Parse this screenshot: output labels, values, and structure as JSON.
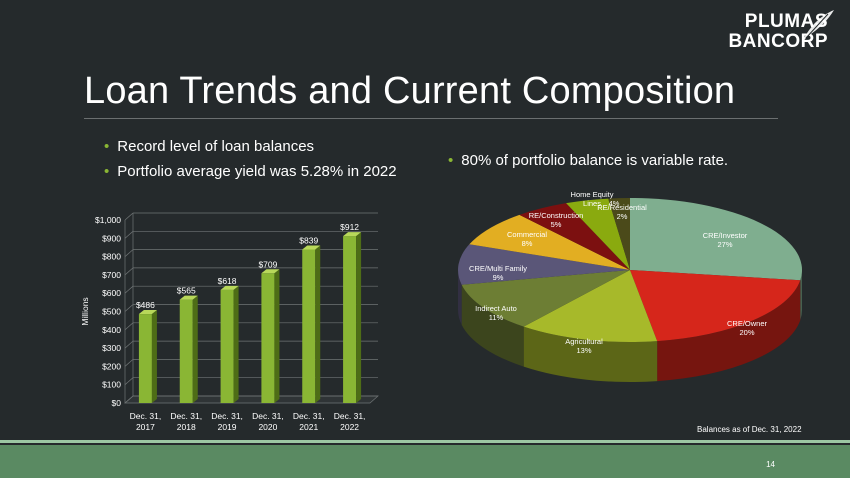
{
  "header": {
    "logo_line1": "PLUMAS",
    "logo_line2": "BANCORP",
    "title": "Loan Trends and Current Composition"
  },
  "bullets_left": [
    "Record level of loan balances",
    "Portfolio average yield was 5.28% in 2022"
  ],
  "bullet_right": "80% of portfolio balance is variable rate.",
  "footer": {
    "as_of": "Balances as of  Dec. 31, 2022",
    "page_number": "14"
  },
  "colors": {
    "background": "#252a2c",
    "bar": "#8ab634",
    "footer": "#5a8a62",
    "bullet_dot": "#8ab634"
  },
  "chart_data": [
    {
      "type": "bar",
      "categories": [
        [
          "Dec. 31,",
          "2017"
        ],
        [
          "Dec. 31,",
          "2018"
        ],
        [
          "Dec. 31,",
          "2019"
        ],
        [
          "Dec. 31,",
          "2020"
        ],
        [
          "Dec. 31,",
          "2021"
        ],
        [
          "Dec. 31,",
          "2022"
        ]
      ],
      "values": [
        486,
        565,
        618,
        709,
        839,
        912
      ],
      "value_labels": [
        "$486",
        "$565",
        "$618",
        "$709",
        "$839",
        "$912"
      ],
      "ylabel": "Millions",
      "ylim": [
        0,
        1000
      ],
      "yticks": [
        "$0",
        "$100",
        "$200",
        "$300",
        "$400",
        "$500",
        "$600",
        "$700",
        "$800",
        "$900",
        "$1,000"
      ],
      "grid": true
    },
    {
      "type": "pie",
      "slices": [
        {
          "label": "CRE/Investor",
          "value": 27,
          "pct": "27%",
          "color": "#7fae8f"
        },
        {
          "label": "CRE/Owner",
          "value": 20,
          "pct": "20%",
          "color": "#d6261b"
        },
        {
          "label": "Agricultural",
          "value": 13,
          "pct": "13%",
          "color": "#a7b92a"
        },
        {
          "label": "Indirect Auto",
          "value": 11,
          "pct": "11%",
          "color": "#6d7e34"
        },
        {
          "label": "CRE/Multi Family",
          "value": 9,
          "pct": "9%",
          "color": "#5a5678"
        },
        {
          "label": "Commercial",
          "value": 8,
          "pct": "8%",
          "color": "#e2ae22"
        },
        {
          "label": "RE/Construction",
          "value": 5,
          "pct": "5%",
          "color": "#7c1010"
        },
        {
          "label": "Home Equity Lines",
          "value": 4,
          "pct": "4%",
          "color": "#8aaa0f"
        },
        {
          "label": "RE/Residential",
          "value": 2,
          "pct": "2%",
          "color": "#4b4a1a"
        }
      ]
    }
  ]
}
